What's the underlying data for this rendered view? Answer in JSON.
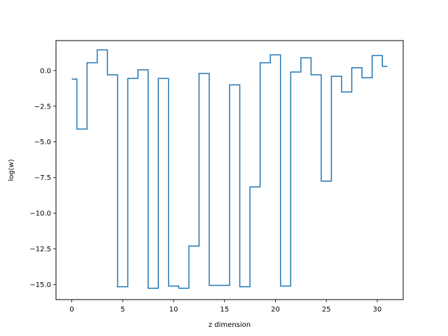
{
  "chart_data": {
    "type": "line",
    "drawstyle": "steps-mid",
    "title": "",
    "xlabel": "z dimension",
    "ylabel": "log(w)",
    "xlim": [
      -1.55,
      32.55
    ],
    "ylim": [
      -16.05,
      2.1
    ],
    "grid": false,
    "x_ticks": [
      0,
      5,
      10,
      15,
      20,
      25,
      30
    ],
    "x_tick_labels": [
      "0",
      "5",
      "10",
      "15",
      "20",
      "25",
      "30"
    ],
    "y_ticks": [
      0.0,
      -2.5,
      -5.0,
      -7.5,
      -10.0,
      -12.5,
      -15.0
    ],
    "y_tick_labels": [
      "0.0",
      "−2.5",
      "−5.0",
      "−7.5",
      "−10.0",
      "−12.5",
      "−15.0"
    ],
    "series": [
      {
        "color": "#1f77b4",
        "x": [
          0,
          1,
          2,
          3,
          4,
          5,
          6,
          7,
          8,
          9,
          10,
          11,
          12,
          13,
          14,
          15,
          16,
          17,
          18,
          19,
          20,
          21,
          22,
          23,
          24,
          25,
          26,
          27,
          28,
          29,
          30,
          31
        ],
        "y": [
          -0.6,
          -4.1,
          0.55,
          1.45,
          -0.3,
          -15.15,
          -0.55,
          0.05,
          -15.25,
          -0.55,
          -15.1,
          -15.25,
          -12.3,
          -0.2,
          -15.05,
          -15.05,
          -1.0,
          -15.15,
          -8.15,
          0.55,
          1.1,
          -15.1,
          -0.1,
          0.9,
          -0.3,
          -7.75,
          -0.4,
          -1.5,
          0.2,
          -0.5,
          1.05,
          0.3
        ]
      }
    ]
  }
}
